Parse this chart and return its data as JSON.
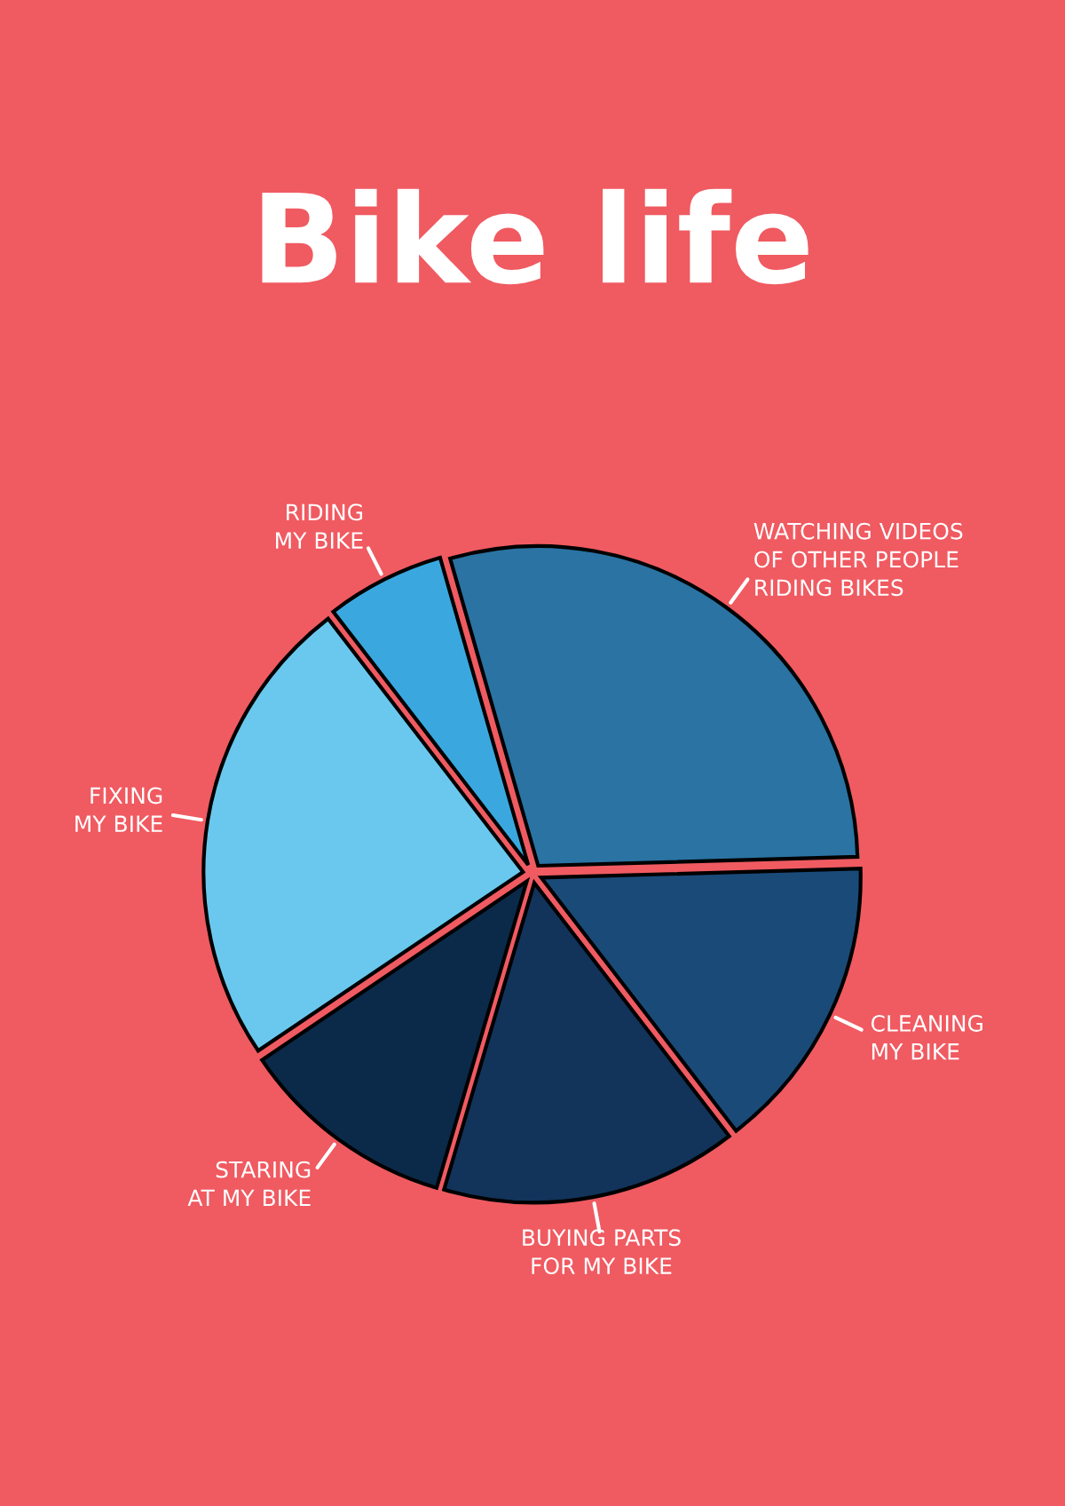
{
  "chart_data": {
    "type": "pie",
    "title": "Bike life",
    "categories": [
      "WATCHING VIDEOS\nOF OTHER PEOPLE\nRIDING BIKES",
      "CLEANING\nMY BIKE",
      "BUYING PARTS\nFOR MY BIKE",
      "STARING\nAT MY BIKE",
      "FIXING\nMY BIKE",
      "RIDING\nMY BIKE"
    ],
    "values": [
      29,
      15,
      15,
      11,
      24,
      6
    ],
    "colors": [
      "#2a73a3",
      "#1a4a78",
      "#12335a",
      "#0b2a4a",
      "#6ac8ee",
      "#3aa8df"
    ]
  }
}
